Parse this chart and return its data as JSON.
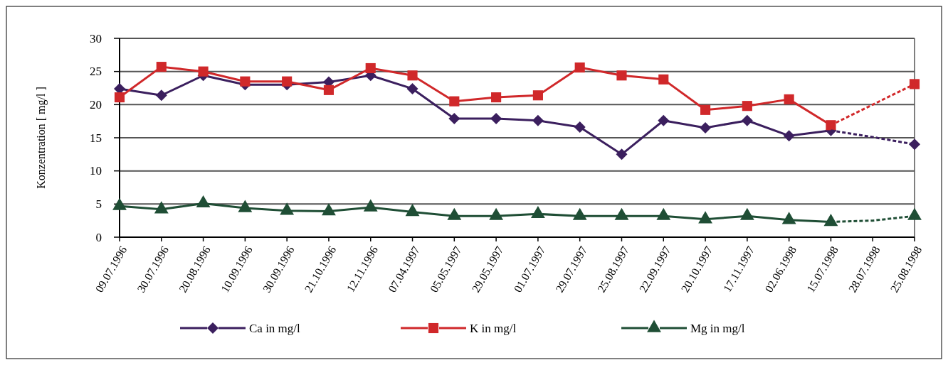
{
  "chart_data": {
    "type": "line",
    "ylabel": "Konzentration [ mg/l ]",
    "categories": [
      "09.07.1996",
      "30.07.1996",
      "20.08.1996",
      "10.09.1996",
      "30.09.1996",
      "21.10.1996",
      "12.11.1996",
      "07.04.1997",
      "05.05.1997",
      "29.05.1997",
      "01.07.1997",
      "29.07.1997",
      "25.08.1997",
      "22.09.1997",
      "20.10.1997",
      "17.11.1997",
      "02.06.1998",
      "15.07.1998",
      "28.07.1998",
      "25.08.1998"
    ],
    "ylim": [
      0,
      30
    ],
    "yticks": [
      0,
      5,
      10,
      15,
      20,
      25,
      30
    ],
    "grid": "y",
    "legend": "bottom",
    "series": [
      {
        "name": "Ca in mg/l",
        "color": "#3b1f5e",
        "marker": "diamond",
        "line_style": "solid",
        "values": [
          22.4,
          21.4,
          24.4,
          23.0,
          23.0,
          23.4,
          24.4,
          22.4,
          17.9,
          17.9,
          17.6,
          16.6,
          12.5,
          17.6,
          16.5,
          17.6,
          15.3,
          16.1,
          null,
          14.0
        ]
      },
      {
        "name": "K in mg/l",
        "color": "#d0282a",
        "marker": "square",
        "line_style": "solid",
        "values": [
          21.1,
          25.7,
          25.0,
          23.5,
          23.5,
          22.2,
          25.5,
          24.4,
          20.5,
          21.1,
          21.4,
          25.6,
          24.4,
          23.8,
          19.2,
          19.8,
          20.8,
          16.9,
          null,
          23.1
        ]
      },
      {
        "name": "Mg in mg/l",
        "color": "#1f4e35",
        "marker": "triangle",
        "line_style": "solid",
        "values": [
          4.7,
          4.2,
          5.1,
          4.4,
          4.0,
          3.9,
          4.5,
          3.8,
          3.2,
          3.2,
          3.5,
          3.2,
          3.2,
          3.2,
          2.7,
          3.2,
          2.6,
          2.3,
          null,
          3.2
        ]
      },
      {
        "color": "#3c205f",
        "marker": "none",
        "line_style": "dotted",
        "values": [
          null,
          null,
          null,
          null,
          null,
          null,
          null,
          null,
          null,
          null,
          null,
          null,
          null,
          null,
          null,
          null,
          null,
          16.1,
          15.1,
          14.0
        ]
      },
      {
        "color": "#d1292b",
        "marker": "none",
        "line_style": "dotted",
        "values": [
          null,
          null,
          null,
          null,
          null,
          null,
          null,
          null,
          null,
          null,
          null,
          null,
          null,
          null,
          null,
          null,
          null,
          16.9,
          20.0,
          23.1
        ]
      },
      {
        "color": "#204f36",
        "marker": "none",
        "line_style": "dotted",
        "values": [
          null,
          null,
          null,
          null,
          null,
          null,
          null,
          null,
          null,
          null,
          null,
          null,
          null,
          null,
          null,
          null,
          null,
          2.3,
          2.5,
          3.2
        ]
      }
    ]
  }
}
